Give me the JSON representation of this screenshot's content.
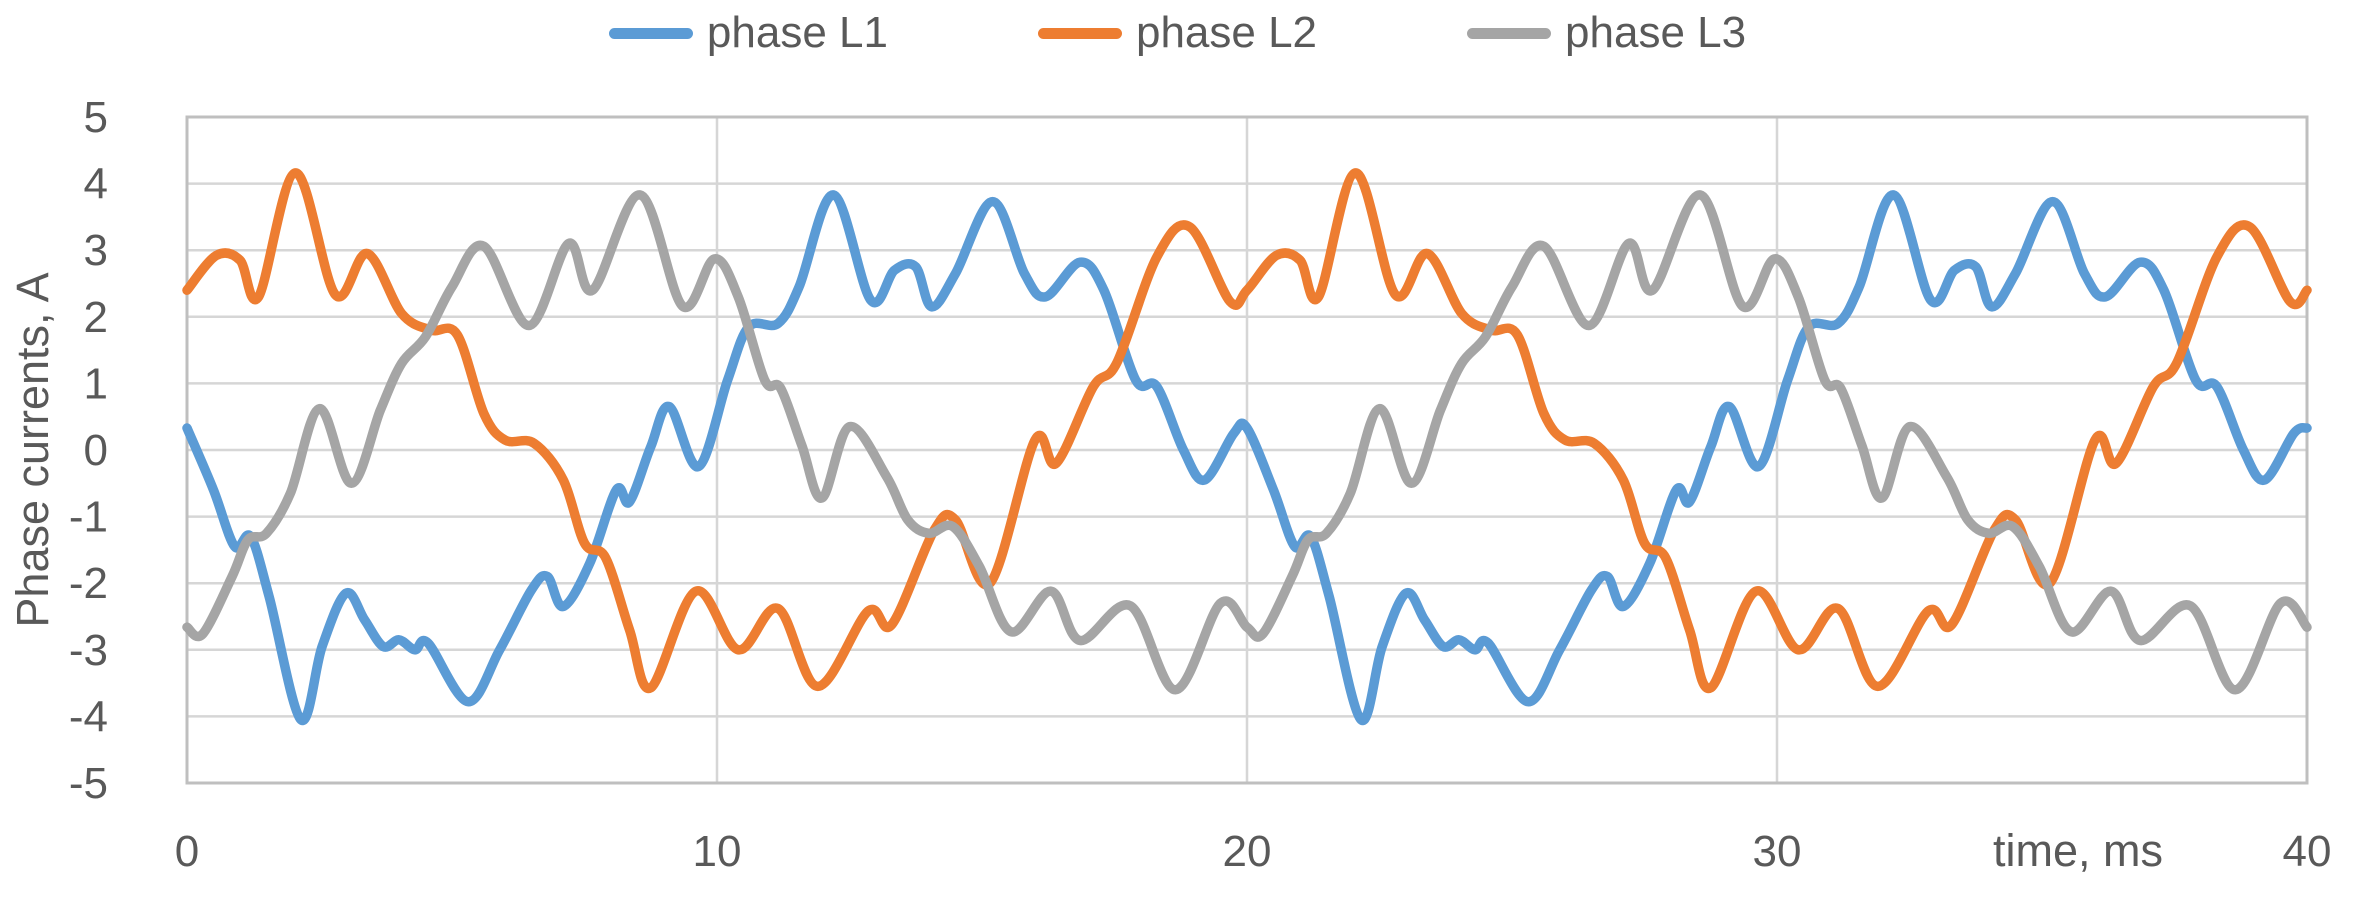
{
  "chart_data": {
    "type": "line",
    "title": "",
    "xlabel": "time, ms",
    "ylabel": "Phase currents, A",
    "xlim": [
      0,
      40
    ],
    "ylim": [
      -5,
      5
    ],
    "x_ticks": [
      0,
      10,
      20,
      30,
      40
    ],
    "y_ticks": [
      5,
      4,
      3,
      2,
      1,
      0,
      -1,
      -2,
      -3,
      -4,
      -5
    ],
    "x_gridlines": [
      10,
      20,
      30
    ],
    "grid": true,
    "legend_position": "top-center",
    "waveform_period_ms": 20,
    "colors": {
      "grid": "#D6D6D6",
      "plot_border": "#BFBFBF",
      "text": "#595959",
      "background": "#FFFFFF"
    },
    "series": [
      {
        "name": "phase L1",
        "color": "#5B9BD5",
        "points": [
          [
            0,
            0.33
          ],
          [
            0.5,
            -0.6
          ],
          [
            0.9,
            -1.45
          ],
          [
            1.2,
            -1.3
          ],
          [
            1.55,
            -2.2
          ],
          [
            2.15,
            -4.05
          ],
          [
            2.55,
            -2.95
          ],
          [
            3.0,
            -2.15
          ],
          [
            3.35,
            -2.55
          ],
          [
            3.7,
            -2.95
          ],
          [
            4.0,
            -2.85
          ],
          [
            4.3,
            -3.0
          ],
          [
            4.55,
            -2.9
          ],
          [
            5.3,
            -3.78
          ],
          [
            5.9,
            -3.0
          ],
          [
            6.5,
            -2.1
          ],
          [
            6.8,
            -1.9
          ],
          [
            7.1,
            -2.35
          ],
          [
            7.6,
            -1.7
          ],
          [
            8.1,
            -0.6
          ],
          [
            8.35,
            -0.78
          ],
          [
            8.75,
            0.05
          ],
          [
            9.1,
            0.65
          ],
          [
            9.65,
            -0.25
          ],
          [
            10.2,
            1.05
          ],
          [
            10.6,
            1.85
          ],
          [
            11.15,
            1.9
          ],
          [
            11.55,
            2.45
          ],
          [
            12.2,
            3.83
          ],
          [
            12.9,
            2.25
          ],
          [
            13.35,
            2.7
          ],
          [
            13.75,
            2.75
          ],
          [
            14.05,
            2.15
          ],
          [
            14.5,
            2.65
          ],
          [
            15.2,
            3.73
          ],
          [
            15.8,
            2.65
          ],
          [
            16.2,
            2.3
          ],
          [
            16.85,
            2.82
          ],
          [
            17.3,
            2.4
          ],
          [
            17.9,
            1.05
          ],
          [
            18.3,
            0.95
          ],
          [
            18.8,
            0.0
          ],
          [
            19.2,
            -0.45
          ],
          [
            19.75,
            0.25
          ],
          [
            20,
            0.33
          ],
          [
            20.5,
            -0.6
          ],
          [
            20.9,
            -1.45
          ],
          [
            21.2,
            -1.3
          ],
          [
            21.55,
            -2.2
          ],
          [
            22.15,
            -4.05
          ],
          [
            22.55,
            -2.95
          ],
          [
            23.0,
            -2.15
          ],
          [
            23.35,
            -2.55
          ],
          [
            23.7,
            -2.95
          ],
          [
            24.0,
            -2.85
          ],
          [
            24.3,
            -3.0
          ],
          [
            24.55,
            -2.9
          ],
          [
            25.3,
            -3.78
          ],
          [
            25.9,
            -3.0
          ],
          [
            26.5,
            -2.1
          ],
          [
            26.8,
            -1.9
          ],
          [
            27.1,
            -2.35
          ],
          [
            27.6,
            -1.7
          ],
          [
            28.1,
            -0.6
          ],
          [
            28.35,
            -0.78
          ],
          [
            28.75,
            0.05
          ],
          [
            29.1,
            0.65
          ],
          [
            29.65,
            -0.25
          ],
          [
            30.2,
            1.05
          ],
          [
            30.6,
            1.85
          ],
          [
            31.15,
            1.9
          ],
          [
            31.55,
            2.45
          ],
          [
            32.2,
            3.83
          ],
          [
            32.9,
            2.25
          ],
          [
            33.35,
            2.7
          ],
          [
            33.75,
            2.75
          ],
          [
            34.05,
            2.15
          ],
          [
            34.5,
            2.65
          ],
          [
            35.2,
            3.73
          ],
          [
            35.8,
            2.65
          ],
          [
            36.2,
            2.3
          ],
          [
            36.85,
            2.82
          ],
          [
            37.3,
            2.4
          ],
          [
            37.9,
            1.05
          ],
          [
            38.3,
            0.95
          ],
          [
            38.8,
            0.0
          ],
          [
            39.2,
            -0.45
          ],
          [
            39.75,
            0.25
          ],
          [
            40,
            0.33
          ]
        ]
      },
      {
        "name": "phase L2",
        "color": "#ED7D31",
        "points": [
          [
            0,
            2.4
          ],
          [
            0.55,
            2.92
          ],
          [
            1.0,
            2.85
          ],
          [
            1.35,
            2.3
          ],
          [
            2.05,
            4.16
          ],
          [
            2.8,
            2.33
          ],
          [
            3.4,
            2.95
          ],
          [
            4.05,
            2.05
          ],
          [
            4.6,
            1.8
          ],
          [
            5.1,
            1.73
          ],
          [
            5.6,
            0.55
          ],
          [
            6.0,
            0.15
          ],
          [
            6.55,
            0.1
          ],
          [
            7.1,
            -0.45
          ],
          [
            7.5,
            -1.4
          ],
          [
            7.9,
            -1.62
          ],
          [
            8.35,
            -2.7
          ],
          [
            8.75,
            -3.57
          ],
          [
            9.6,
            -2.12
          ],
          [
            10.4,
            -3.0
          ],
          [
            11.15,
            -2.38
          ],
          [
            11.9,
            -3.55
          ],
          [
            12.85,
            -2.42
          ],
          [
            13.3,
            -2.62
          ],
          [
            14.1,
            -1.2
          ],
          [
            14.5,
            -1.05
          ],
          [
            15.15,
            -2.0
          ],
          [
            16.0,
            0.15
          ],
          [
            16.4,
            -0.2
          ],
          [
            17.1,
            0.95
          ],
          [
            17.55,
            1.32
          ],
          [
            18.3,
            2.9
          ],
          [
            18.92,
            3.35
          ],
          [
            19.68,
            2.23
          ],
          [
            20,
            2.4
          ],
          [
            20.55,
            2.92
          ],
          [
            21.0,
            2.85
          ],
          [
            21.35,
            2.3
          ],
          [
            22.05,
            4.16
          ],
          [
            22.8,
            2.33
          ],
          [
            23.4,
            2.95
          ],
          [
            24.05,
            2.05
          ],
          [
            24.6,
            1.8
          ],
          [
            25.1,
            1.73
          ],
          [
            25.6,
            0.55
          ],
          [
            26.0,
            0.15
          ],
          [
            26.55,
            0.1
          ],
          [
            27.1,
            -0.45
          ],
          [
            27.5,
            -1.4
          ],
          [
            27.9,
            -1.62
          ],
          [
            28.35,
            -2.7
          ],
          [
            28.75,
            -3.57
          ],
          [
            29.6,
            -2.12
          ],
          [
            30.4,
            -3.0
          ],
          [
            31.15,
            -2.38
          ],
          [
            31.9,
            -3.55
          ],
          [
            32.85,
            -2.42
          ],
          [
            33.3,
            -2.62
          ],
          [
            34.1,
            -1.2
          ],
          [
            34.5,
            -1.05
          ],
          [
            35.15,
            -2.0
          ],
          [
            36.0,
            0.15
          ],
          [
            36.4,
            -0.2
          ],
          [
            37.1,
            0.95
          ],
          [
            37.55,
            1.32
          ],
          [
            38.3,
            2.9
          ],
          [
            38.92,
            3.35
          ],
          [
            39.68,
            2.23
          ],
          [
            40,
            2.4
          ]
        ]
      },
      {
        "name": "phase L3",
        "color": "#A5A5A5",
        "points": [
          [
            0,
            -2.66
          ],
          [
            0.3,
            -2.76
          ],
          [
            0.85,
            -1.9
          ],
          [
            1.15,
            -1.35
          ],
          [
            1.5,
            -1.25
          ],
          [
            1.95,
            -0.65
          ],
          [
            2.5,
            0.62
          ],
          [
            3.1,
            -0.5
          ],
          [
            3.65,
            0.6
          ],
          [
            4.05,
            1.3
          ],
          [
            4.5,
            1.7
          ],
          [
            5.0,
            2.45
          ],
          [
            5.6,
            3.06
          ],
          [
            6.45,
            1.87
          ],
          [
            7.2,
            3.1
          ],
          [
            7.65,
            2.4
          ],
          [
            8.55,
            3.83
          ],
          [
            9.35,
            2.16
          ],
          [
            9.95,
            2.87
          ],
          [
            10.4,
            2.3
          ],
          [
            10.9,
            1.05
          ],
          [
            11.2,
            0.93
          ],
          [
            11.6,
            0.07
          ],
          [
            11.98,
            -0.72
          ],
          [
            12.5,
            0.35
          ],
          [
            13.2,
            -0.4
          ],
          [
            13.6,
            -1.05
          ],
          [
            14.0,
            -1.25
          ],
          [
            14.45,
            -1.15
          ],
          [
            14.95,
            -1.75
          ],
          [
            15.55,
            -2.73
          ],
          [
            16.3,
            -2.12
          ],
          [
            16.85,
            -2.86
          ],
          [
            17.8,
            -2.34
          ],
          [
            18.65,
            -3.6
          ],
          [
            19.5,
            -2.3
          ],
          [
            20,
            -2.66
          ],
          [
            20.3,
            -2.76
          ],
          [
            20.85,
            -1.9
          ],
          [
            21.15,
            -1.35
          ],
          [
            21.5,
            -1.25
          ],
          [
            21.95,
            -0.65
          ],
          [
            22.5,
            0.62
          ],
          [
            23.1,
            -0.5
          ],
          [
            23.65,
            0.6
          ],
          [
            24.05,
            1.3
          ],
          [
            24.5,
            1.7
          ],
          [
            25.0,
            2.45
          ],
          [
            25.6,
            3.06
          ],
          [
            26.45,
            1.87
          ],
          [
            27.2,
            3.1
          ],
          [
            27.65,
            2.4
          ],
          [
            28.55,
            3.83
          ],
          [
            29.35,
            2.16
          ],
          [
            29.95,
            2.87
          ],
          [
            30.4,
            2.3
          ],
          [
            30.9,
            1.05
          ],
          [
            31.2,
            0.93
          ],
          [
            31.6,
            0.07
          ],
          [
            31.98,
            -0.72
          ],
          [
            32.5,
            0.35
          ],
          [
            33.2,
            -0.4
          ],
          [
            33.6,
            -1.05
          ],
          [
            34.0,
            -1.25
          ],
          [
            34.45,
            -1.15
          ],
          [
            34.95,
            -1.75
          ],
          [
            35.55,
            -2.73
          ],
          [
            36.3,
            -2.12
          ],
          [
            36.85,
            -2.86
          ],
          [
            37.8,
            -2.34
          ],
          [
            38.65,
            -3.6
          ],
          [
            39.5,
            -2.3
          ],
          [
            40,
            -2.66
          ]
        ]
      }
    ]
  }
}
